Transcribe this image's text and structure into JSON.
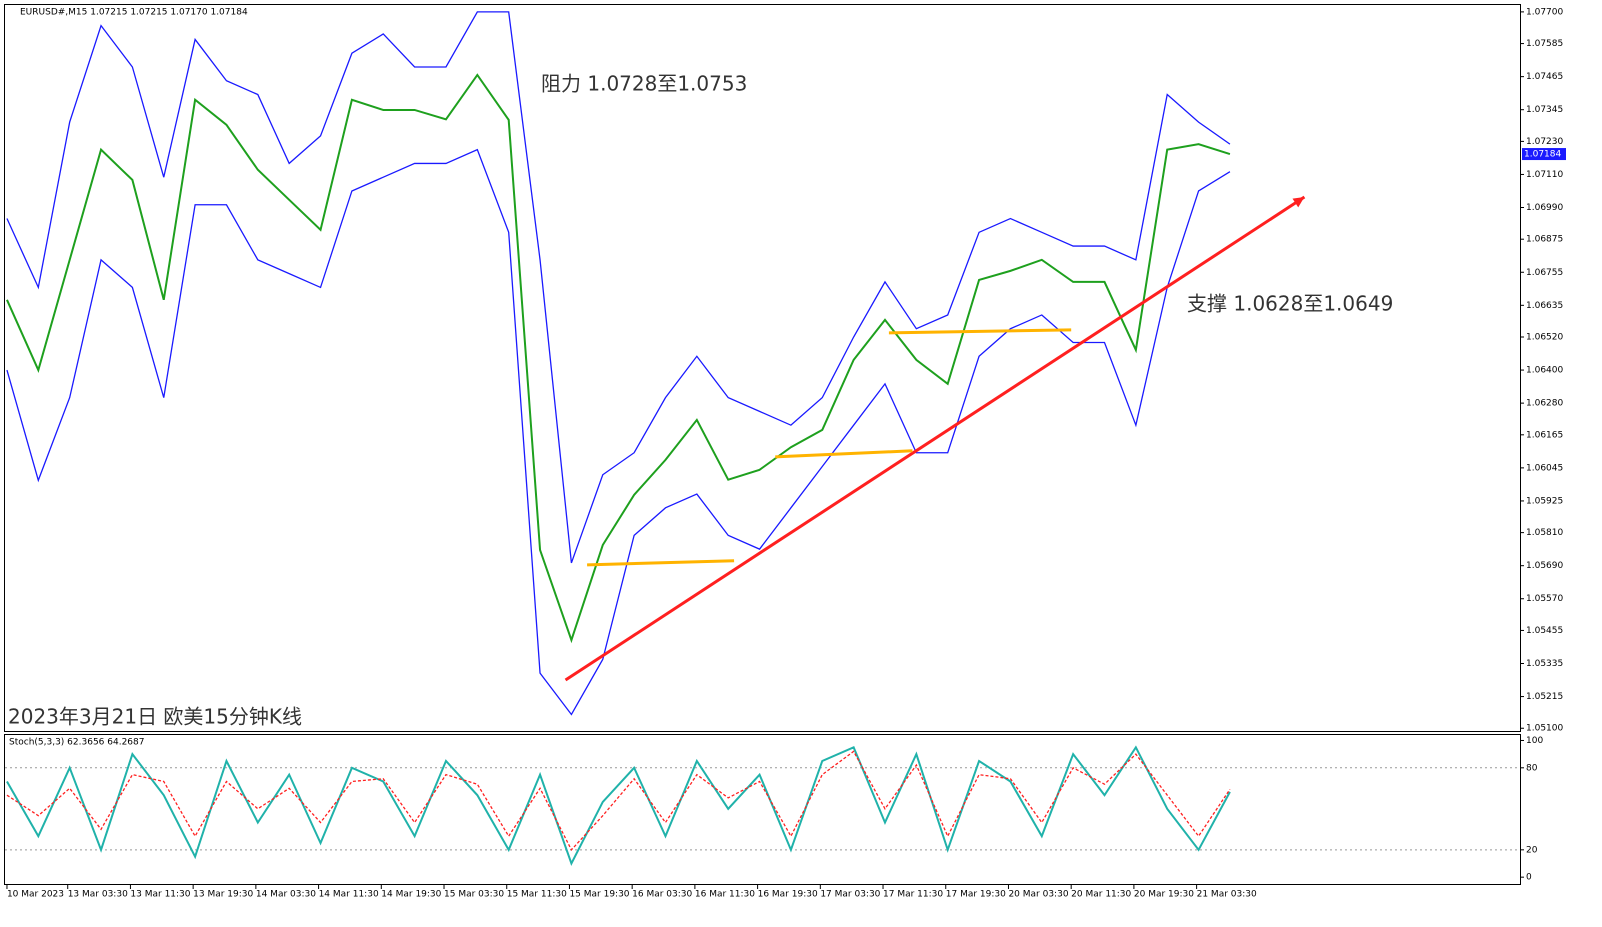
{
  "chart_data": [
    {
      "type": "line",
      "header": "EURUSD#,M15  1.07215 1.07215 1.07170 1.07184",
      "annotations": [
        "阻力 1.0728至1.0753",
        "支撑 1.0628至1.0649",
        "2023年3月21日 欧美15分钟K线"
      ],
      "last_price": 1.07184,
      "xlim": [
        -1,
        772
      ],
      "x": [
        0,
        16,
        32,
        48,
        64,
        80,
        96,
        112,
        128,
        144,
        160,
        176,
        192,
        208,
        224,
        240,
        256,
        272,
        288,
        304,
        320,
        336,
        352,
        368,
        384,
        400,
        416,
        432,
        448,
        464,
        480,
        496,
        512,
        528,
        544,
        560,
        576,
        592,
        608,
        624
      ],
      "xticks": [
        {
          "value": 0,
          "label": "10 Mar 2023"
        },
        {
          "value": 31,
          "label": "13 Mar 03:30"
        },
        {
          "value": 63,
          "label": "13 Mar 11:30"
        },
        {
          "value": 95,
          "label": "13 Mar 19:30"
        },
        {
          "value": 127,
          "label": "14 Mar 03:30"
        },
        {
          "value": 159,
          "label": "14 Mar 11:30"
        },
        {
          "value": 191,
          "label": "14 Mar 19:30"
        },
        {
          "value": 223,
          "label": "15 Mar 03:30"
        },
        {
          "value": 255,
          "label": "15 Mar 11:30"
        },
        {
          "value": 287,
          "label": "15 Mar 19:30"
        },
        {
          "value": 319,
          "label": "16 Mar 03:30"
        },
        {
          "value": 351,
          "label": "16 Mar 11:30"
        },
        {
          "value": 383,
          "label": "16 Mar 19:30"
        },
        {
          "value": 415,
          "label": "17 Mar 03:30"
        },
        {
          "value": 447,
          "label": "17 Mar 11:30"
        },
        {
          "value": 479,
          "label": "17 Mar 19:30"
        },
        {
          "value": 511,
          "label": "20 Mar 03:30"
        },
        {
          "value": 543,
          "label": "20 Mar 11:30"
        },
        {
          "value": 575,
          "label": "20 Mar 19:30"
        },
        {
          "value": 607,
          "label": "21 Mar 03:30"
        }
      ],
      "ylim": [
        1.0509,
        1.07725
      ],
      "yticks": [
        {
          "value": 1.077,
          "label": "1.07700"
        },
        {
          "value": 1.07585,
          "label": "1.07585"
        },
        {
          "value": 1.07465,
          "label": "1.07465"
        },
        {
          "value": 1.07345,
          "label": "1.07345"
        },
        {
          "value": 1.0723,
          "label": "1.07230"
        },
        {
          "value": 1.0711,
          "label": "1.07110"
        },
        {
          "value": 1.0699,
          "label": "1.06990"
        },
        {
          "value": 1.06875,
          "label": "1.06875"
        },
        {
          "value": 1.06755,
          "label": "1.06755"
        },
        {
          "value": 1.06635,
          "label": "1.06635"
        },
        {
          "value": 1.0652,
          "label": "1.06520"
        },
        {
          "value": 1.064,
          "label": "1.06400"
        },
        {
          "value": 1.0628,
          "label": "1.06280"
        },
        {
          "value": 1.06165,
          "label": "1.06165"
        },
        {
          "value": 1.06045,
          "label": "1.06045"
        },
        {
          "value": 1.05925,
          "label": "1.05925"
        },
        {
          "value": 1.0581,
          "label": "1.05810"
        },
        {
          "value": 1.0569,
          "label": "1.05690"
        },
        {
          "value": 1.0557,
          "label": "1.05570"
        },
        {
          "value": 1.05455,
          "label": "1.05455"
        },
        {
          "value": 1.05335,
          "label": "1.05335"
        },
        {
          "value": 1.05215,
          "label": "1.05215"
        },
        {
          "value": 1.051,
          "label": "1.05100"
        }
      ],
      "series": [
        {
          "color": "#1ea01e",
          "values": [
            1.06655,
            1.064,
            1.068,
            1.072,
            1.0709,
            1.06655,
            1.07381,
            1.0729,
            1.07127,
            1.07018,
            1.06909,
            1.07381,
            1.07344,
            1.07344,
            1.0731,
            1.07471,
            1.07308,
            1.05747,
            1.0542,
            1.05765,
            1.05947,
            1.06074,
            1.06219,
            1.06002,
            1.06038,
            1.0612,
            1.06183,
            1.06437,
            1.06582,
            1.06437,
            1.0635,
            1.06727,
            1.0676,
            1.068,
            1.0672,
            1.0672,
            1.06473,
            1.072,
            1.0722,
            1.07184
          ]
        },
        {
          "color": "#1a1aff",
          "values": [
            1.0695,
            1.067,
            1.073,
            1.0765,
            1.075,
            1.071,
            1.076,
            1.0745,
            1.074,
            1.0715,
            1.0725,
            1.0755,
            1.0762,
            1.075,
            1.075,
            1.077,
            1.077,
            1.068,
            1.057,
            1.0602,
            1.061,
            1.063,
            1.0645,
            1.063,
            1.0625,
            1.062,
            1.063,
            1.0652,
            1.0672,
            1.0655,
            1.066,
            1.069,
            1.0695,
            1.069,
            1.0685,
            1.0685,
            1.068,
            1.074,
            1.073,
            1.0722
          ]
        },
        {
          "color": "#1a1aff",
          "values": [
            1.064,
            1.06,
            1.063,
            1.068,
            1.067,
            1.063,
            1.07,
            1.07,
            1.068,
            1.0675,
            1.067,
            1.0705,
            1.071,
            1.0715,
            1.0715,
            1.072,
            1.069,
            1.053,
            1.0515,
            1.0535,
            1.058,
            1.059,
            1.0595,
            1.058,
            1.0575,
            1.059,
            1.0605,
            1.062,
            1.0635,
            1.061,
            1.061,
            1.0645,
            1.0655,
            1.066,
            1.065,
            1.065,
            1.062,
            1.067,
            1.0705,
            1.0712
          ]
        }
      ],
      "trendlines": [
        {
          "color": "#ff2020",
          "arrow": true,
          "x": [
            285,
            662
          ],
          "y": [
            1.05275,
            1.07028
          ]
        },
        {
          "color": "#ffb300",
          "arrow": false,
          "x": [
            296,
            371
          ],
          "y": [
            1.05693,
            1.05708
          ]
        },
        {
          "color": "#ffb300",
          "arrow": false,
          "x": [
            392,
            462
          ],
          "y": [
            1.06085,
            1.06107
          ]
        },
        {
          "color": "#ffb300",
          "arrow": false,
          "x": [
            450,
            543
          ],
          "y": [
            1.06535,
            1.06546
          ]
        }
      ]
    },
    {
      "type": "line",
      "label": "Stoch(5,3,3) 62.3656 64.2687",
      "xlim": [
        -1,
        772
      ],
      "x": [
        0,
        16,
        32,
        48,
        64,
        80,
        96,
        112,
        128,
        144,
        160,
        176,
        192,
        208,
        224,
        240,
        256,
        272,
        288,
        304,
        320,
        336,
        352,
        368,
        384,
        400,
        416,
        432,
        448,
        464,
        480,
        496,
        512,
        528,
        544,
        560,
        576,
        592,
        608,
        624
      ],
      "ylim": [
        -5,
        104
      ],
      "yticks": [
        100,
        80,
        20,
        0
      ],
      "grid_levels": [
        80,
        20
      ],
      "series": [
        {
          "color": "#20b2aa",
          "values": [
            70,
            30,
            80,
            20,
            90,
            60,
            15,
            85,
            40,
            75,
            25,
            80,
            70,
            30,
            85,
            60,
            20,
            75,
            10,
            55,
            80,
            30,
            85,
            50,
            75,
            20,
            85,
            95,
            40,
            90,
            20,
            85,
            70,
            30,
            90,
            60,
            95,
            50,
            20,
            62.3656
          ]
        },
        {
          "color": "#ff2020",
          "values": [
            60,
            45,
            65,
            35,
            75,
            70,
            30,
            70,
            50,
            65,
            40,
            70,
            72,
            40,
            75,
            68,
            30,
            65,
            20,
            45,
            72,
            40,
            75,
            58,
            70,
            30,
            75,
            92,
            50,
            82,
            30,
            75,
            72,
            40,
            80,
            68,
            90,
            60,
            30,
            64.2687
          ]
        }
      ]
    }
  ]
}
